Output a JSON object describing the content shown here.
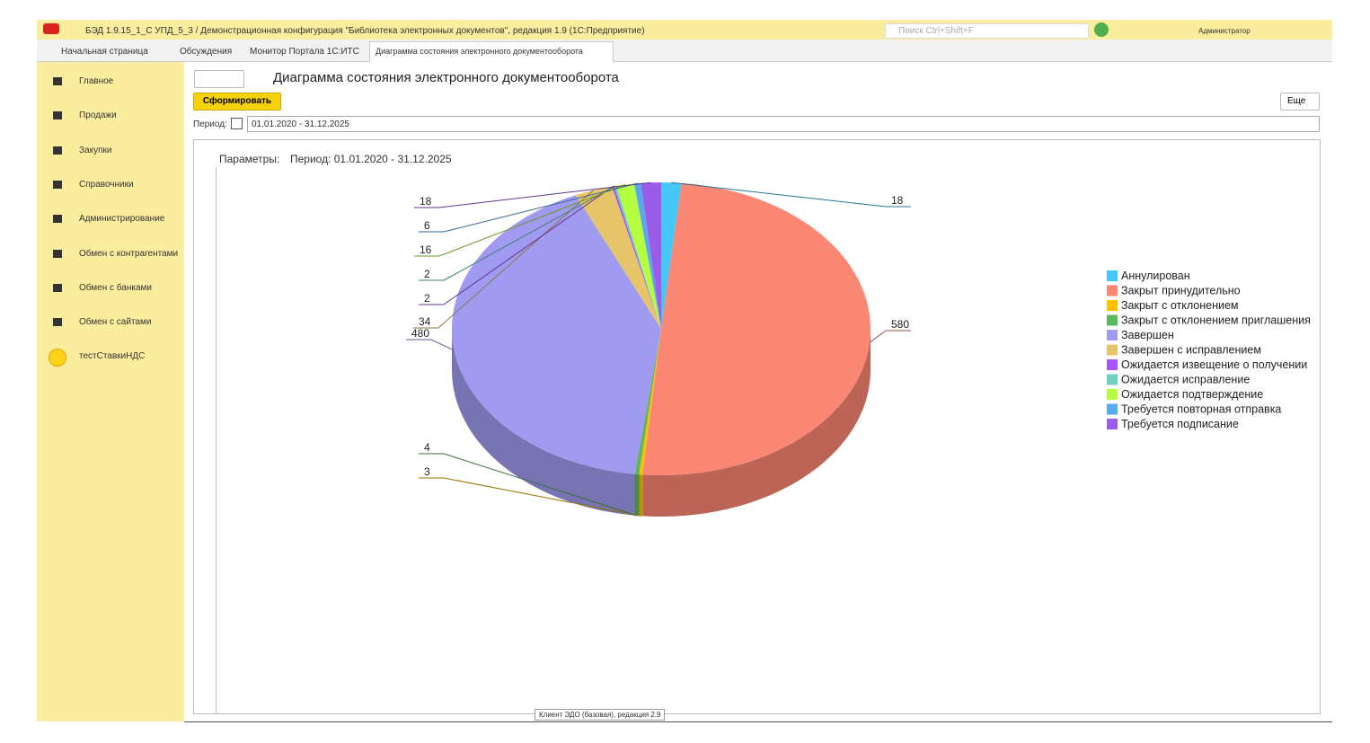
{
  "window": {
    "title": "БЭД 1.9.15_1_С УПД_5_3 / Демонстрационная конфигурация \"Библиотека электронных документов\", редакция 1.9  (1С:Предприятие)",
    "search": "Поиск Ctrl+Shift+F",
    "user": "Администратор"
  },
  "tabs": [
    "Начальная страница",
    "Обсуждения",
    "Монитор Портала 1С:ИТС",
    "Диаграмма состояния электронного документооборота"
  ],
  "sidebar": [
    "Главное",
    "Продажи",
    "Закупки",
    "Справочники",
    "Администрирование",
    "Обмен с контрагентами",
    "Обмен с банками",
    "Обмен с сайтами",
    "тестСтавкиНДС"
  ],
  "form": {
    "title": "Диаграмма состояния электронного документооборота",
    "button": "Сформировать",
    "more": "Еще",
    "period_label": "Период:",
    "period": "01.01.2020 - 31.12.2025",
    "params_label": "Параметры:",
    "params_value": "Период: 01.01.2020 - 31.12.2025"
  },
  "status": "Клиент ЭДО (базовая), редакция 2.9",
  "chart_data": {
    "type": "pie",
    "categories": [
      "Аннулирован",
      "Закрыт принудительно",
      "Закрыт с отклонением",
      "Закрыт с отклонением приглашения",
      "Завершен",
      "Завершен с исправлением",
      "Ожидается извещение о получении",
      "Ожидается исправление",
      "Ожидается подтверждение",
      "Требуется повторная отправка",
      "Требуется подписание"
    ],
    "values": [
      18,
      580,
      3,
      4,
      480,
      34,
      2,
      2,
      16,
      6,
      18
    ],
    "colors": [
      "#45c6f4",
      "#fa8674",
      "#ffc000",
      "#5cb85c",
      "#a09bf0",
      "#e6c46a",
      "#a855f7",
      "#6fd1c2",
      "#b5ff40",
      "#5aa9ef",
      "#9b5ce8"
    ],
    "legend": "right"
  }
}
